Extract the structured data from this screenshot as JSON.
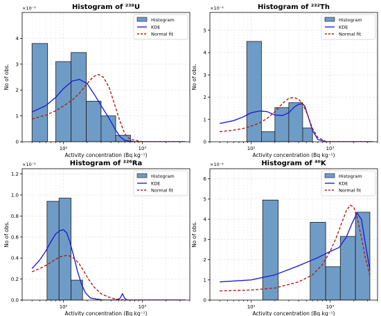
{
  "chart_data": [
    {
      "type": "bar",
      "title": "Histogram of ²³⁸U",
      "xlabel": "Activity concentration (Bq kg⁻¹)",
      "ylabel": "No of obs.",
      "x_scale": "log",
      "xlim": [
        30,
        4000
      ],
      "ylim": [
        0,
        0.005
      ],
      "offset_label": "×10⁻³",
      "y_ticks": [
        0,
        0.001,
        0.002,
        0.003,
        0.004
      ],
      "y_tick_labels": [
        "0",
        "1",
        "2",
        "3",
        "4"
      ],
      "x_ticks": [
        100,
        1000
      ],
      "x_tick_labels": [
        "10²",
        "10³"
      ],
      "grid": true,
      "legend_position": "top-right",
      "legend": [
        "Histogram",
        "KDE",
        "Normal fit"
      ],
      "bars": [
        {
          "x0": 40,
          "x1": 63,
          "value": 0.0038
        },
        {
          "x0": 80,
          "x1": 125,
          "value": 0.0031
        },
        {
          "x0": 125,
          "x1": 195,
          "value": 0.00345
        },
        {
          "x0": 195,
          "x1": 300,
          "value": 0.00157
        },
        {
          "x0": 300,
          "x1": 460,
          "value": 0.001
        },
        {
          "x0": 460,
          "x1": 710,
          "value": 0.00025
        }
      ],
      "kde": {
        "x": [
          40,
          60,
          80,
          100,
          130,
          160,
          200,
          250,
          300,
          380,
          450,
          520,
          600,
          800,
          1000,
          2000,
          3500
        ],
        "y": [
          0.00115,
          0.0014,
          0.00172,
          0.00205,
          0.00235,
          0.00241,
          0.00225,
          0.0018,
          0.0014,
          0.0009,
          0.0005,
          0.0002,
          5e-05,
          0,
          0,
          0,
          0
        ]
      },
      "normal_fit": {
        "x": [
          40,
          60,
          80,
          100,
          130,
          160,
          200,
          240,
          280,
          320,
          380,
          450,
          520,
          600,
          700,
          1000,
          2000,
          3500
        ],
        "y": [
          0.00088,
          0.00103,
          0.0012,
          0.00138,
          0.00162,
          0.00188,
          0.00225,
          0.00252,
          0.0026,
          0.0025,
          0.0021,
          0.0014,
          0.0008,
          0.0003,
          0.0001,
          0,
          0,
          0
        ]
      }
    },
    {
      "type": "bar",
      "title": "Histogram of ²³²Th",
      "xlabel": "Activity concentration (Bq kg⁻¹)",
      "ylabel": "No of obs.",
      "x_scale": "log",
      "xlim": [
        30,
        4000
      ],
      "ylim": [
        0,
        0.0058
      ],
      "offset_label": "×10⁻³",
      "y_ticks": [
        0,
        0.001,
        0.002,
        0.003,
        0.004,
        0.005
      ],
      "y_tick_labels": [
        "0",
        "1",
        "2",
        "3",
        "4",
        "5"
      ],
      "x_ticks": [
        100,
        1000
      ],
      "x_tick_labels": [
        "10²",
        "10³"
      ],
      "grid": true,
      "legend_position": "top-right",
      "legend": [
        "Histogram",
        "KDE",
        "Normal fit"
      ],
      "bars": [
        {
          "x0": 88,
          "x1": 135,
          "value": 0.0045
        },
        {
          "x0": 135,
          "x1": 200,
          "value": 0.00045
        },
        {
          "x0": 200,
          "x1": 300,
          "value": 0.00153
        },
        {
          "x0": 300,
          "x1": 450,
          "value": 0.00175
        },
        {
          "x0": 450,
          "x1": 600,
          "value": 0.00062
        }
      ],
      "kde": {
        "x": [
          40,
          60,
          80,
          100,
          130,
          160,
          200,
          250,
          300,
          350,
          400,
          450,
          480,
          520,
          600,
          700,
          900,
          1500,
          3500
        ],
        "y": [
          0.00082,
          0.00095,
          0.00112,
          0.0013,
          0.00138,
          0.00135,
          0.0012,
          0.00118,
          0.0013,
          0.00155,
          0.00168,
          0.0017,
          0.0016,
          0.0012,
          0.0005,
          0.0001,
          0,
          0,
          0
        ]
      },
      "normal_fit": {
        "x": [
          40,
          60,
          80,
          100,
          130,
          160,
          200,
          250,
          300,
          350,
          400,
          450,
          520,
          600,
          700,
          900,
          1500,
          3500
        ],
        "y": [
          0.00045,
          0.00052,
          0.0006,
          0.0007,
          0.00085,
          0.00105,
          0.00135,
          0.00172,
          0.00195,
          0.00198,
          0.0019,
          0.0017,
          0.0012,
          0.0006,
          0.0002,
          0,
          0,
          0
        ]
      }
    },
    {
      "type": "bar",
      "title": "Histogram of ²²⁶Ra",
      "xlabel": "Activity concentration (Bq kg⁻¹)",
      "ylabel": "No of obs.",
      "x_scale": "log",
      "xlim": [
        30,
        4000
      ],
      "ylim": [
        0,
        0.0125
      ],
      "offset_label": "×10⁻²",
      "y_ticks": [
        0,
        0.002,
        0.004,
        0.006,
        0.008,
        0.01,
        0.012
      ],
      "y_tick_labels": [
        "0.0",
        "0.2",
        "0.4",
        "0.6",
        "0.8",
        "1.0",
        "1.2"
      ],
      "x_ticks": [
        100,
        1000
      ],
      "x_tick_labels": [
        "10²",
        "10³"
      ],
      "grid": true,
      "legend_position": "top-right",
      "legend": [
        "Histogram",
        "KDE",
        "Normal fit"
      ],
      "bars": [
        {
          "x0": 62,
          "x1": 88,
          "value": 0.0094
        },
        {
          "x0": 88,
          "x1": 125,
          "value": 0.0097
        },
        {
          "x0": 125,
          "x1": 175,
          "value": 0.0019
        }
      ],
      "kde": {
        "x": [
          40,
          50,
          60,
          70,
          80,
          90,
          100,
          110,
          120,
          135,
          150,
          170,
          190,
          220,
          260,
          320,
          450,
          520,
          560,
          600,
          650,
          800,
          1500,
          3500
        ],
        "y": [
          0.003,
          0.0038,
          0.0047,
          0.0056,
          0.0063,
          0.0066,
          0.0067,
          0.0064,
          0.0056,
          0.0042,
          0.0028,
          0.0015,
          0.0007,
          0.0002,
          0.0001,
          0,
          0,
          0.00015,
          0.0006,
          0.00015,
          0,
          0,
          0,
          0
        ]
      },
      "normal_fit": {
        "x": [
          40,
          50,
          60,
          70,
          80,
          90,
          100,
          110,
          120,
          140,
          160,
          180,
          200,
          240,
          300,
          400,
          500,
          700,
          1000,
          3500
        ],
        "y": [
          0.0027,
          0.003,
          0.0033,
          0.0036,
          0.0039,
          0.0041,
          0.0042,
          0.00425,
          0.0042,
          0.0039,
          0.0034,
          0.0028,
          0.0022,
          0.0013,
          0.0006,
          0.0002,
          5e-05,
          0,
          0,
          0
        ]
      }
    },
    {
      "type": "bar",
      "title": "Histogram of ⁴⁰K",
      "xlabel": "Activity concentration (Bq kg⁻¹)",
      "ylabel": "No of obs.",
      "x_scale": "log",
      "xlim": [
        30,
        4000
      ],
      "ylim": [
        0,
        0.00065
      ],
      "offset_label": "×10⁻⁴",
      "y_ticks": [
        0,
        0.0001,
        0.0002,
        0.0003,
        0.0004,
        0.0005,
        0.0006
      ],
      "y_tick_labels": [
        "0",
        "1",
        "2",
        "3",
        "4",
        "5",
        "6"
      ],
      "x_ticks": [
        100,
        1000
      ],
      "x_tick_labels": [
        "10²",
        "10³"
      ],
      "grid": true,
      "legend_position": "top-right",
      "legend": [
        "Histogram",
        "KDE",
        "Normal fit"
      ],
      "bars": [
        {
          "x0": 140,
          "x1": 220,
          "value": 0.000495
        },
        {
          "x0": 560,
          "x1": 880,
          "value": 0.000385
        },
        {
          "x0": 880,
          "x1": 1350,
          "value": 0.000165
        },
        {
          "x0": 1350,
          "x1": 2100,
          "value": 0.000315
        },
        {
          "x0": 2100,
          "x1": 3200,
          "value": 0.000435
        }
      ],
      "kde": {
        "x": [
          40,
          100,
          200,
          400,
          700,
          1000,
          1300,
          1600,
          1900,
          2200,
          2500,
          2800,
          3200
        ],
        "y": [
          9e-05,
          0.0001,
          0.000125,
          0.00017,
          0.00021,
          0.00024,
          0.00026,
          0.00031,
          0.00038,
          0.00043,
          0.0004,
          0.00028,
          0.00015
        ]
      },
      "normal_fit": {
        "x": [
          40,
          100,
          200,
          400,
          600,
          800,
          1000,
          1200,
          1400,
          1600,
          1800,
          2000,
          2200,
          2500,
          2800,
          3200
        ],
        "y": [
          4.5e-05,
          5e-05,
          6e-05,
          9e-05,
          0.000125,
          0.000175,
          0.00024,
          0.00031,
          0.00038,
          0.00044,
          0.00047,
          0.00046,
          0.00041,
          0.00031,
          0.00021,
          0.00012
        ]
      }
    }
  ],
  "style": {
    "bar_fill": "#6f9cc6",
    "bar_stroke": "#1a1a1a",
    "kde_color": "#1f1fd6",
    "normal_color": "#b01b12",
    "grid_color": "#e6e6e6",
    "axis_color": "#000000"
  }
}
